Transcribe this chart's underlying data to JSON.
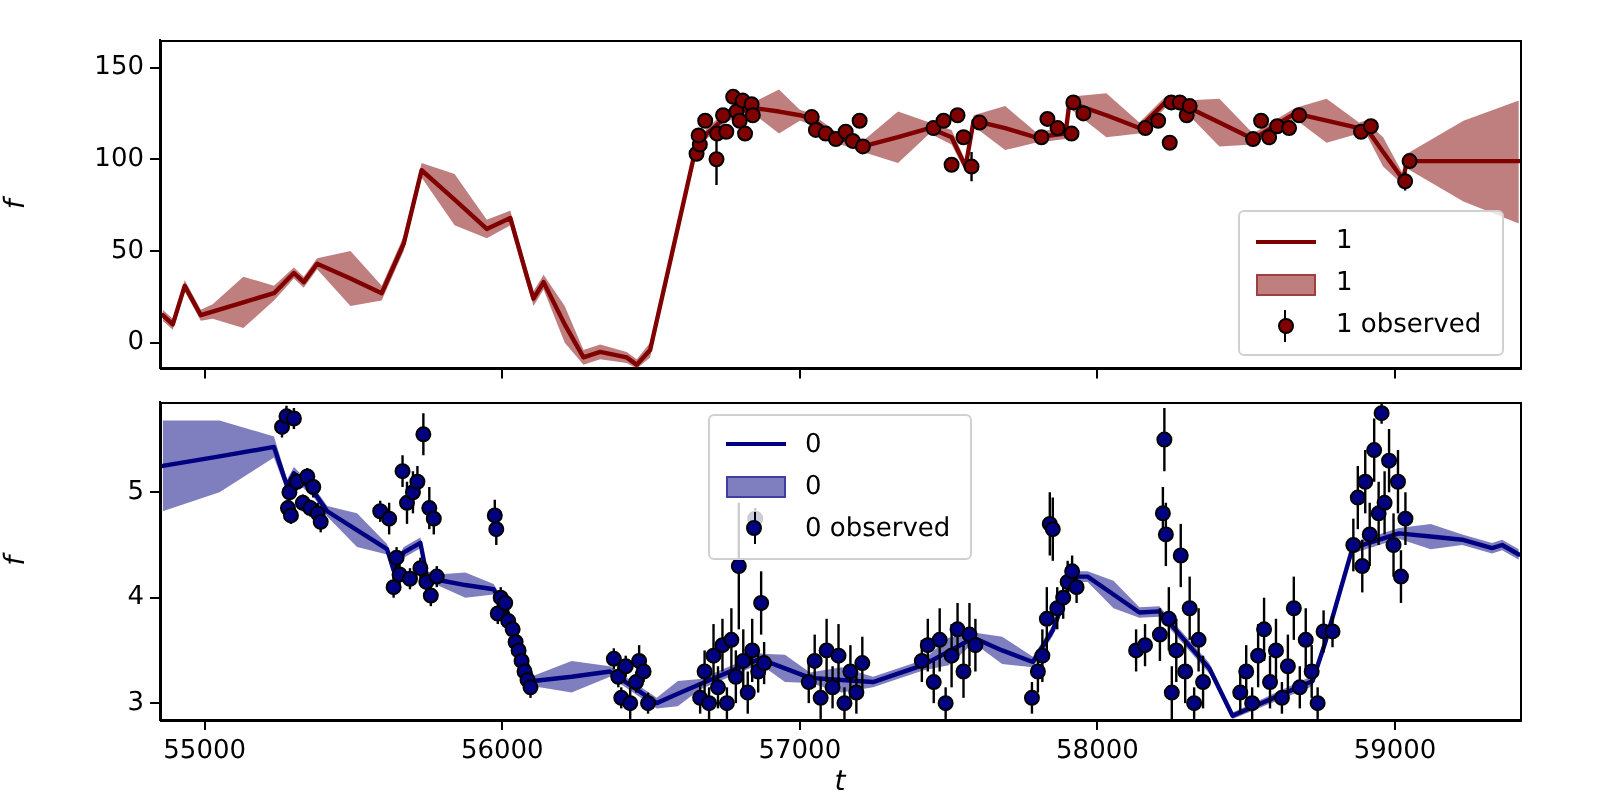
{
  "chart_data": [
    {
      "type": "line",
      "ylabel": "f",
      "xlim": [
        54850,
        59420
      ],
      "xticks": [
        55000,
        56000,
        57000,
        58000,
        59000
      ],
      "ylim": [
        -14,
        165
      ],
      "yticks": [
        0,
        50,
        100,
        150
      ],
      "tick_labels": "y",
      "legend": "bottom right",
      "series": [
        {
          "name": "1",
          "marker": "none",
          "color": "#800000",
          "x": [
            54859,
            54893,
            54933,
            54987,
            55027,
            55130,
            55233,
            55300,
            55333,
            55378,
            55490,
            55595,
            55669,
            55729,
            55840,
            55948,
            56027,
            56083,
            56105,
            56139,
            56210,
            56273,
            56329,
            56418,
            56452,
            56497,
            56642,
            56687,
            56760,
            56843,
            56930,
            57000,
            57040,
            57121,
            57212,
            57330,
            57436,
            57510,
            57557,
            57584,
            57690,
            57792,
            57893,
            57906,
            58030,
            58141,
            58228,
            58295,
            58410,
            58523,
            58664,
            58770,
            58879,
            58899,
            58960,
            59027,
            59040,
            59230,
            59416
          ],
          "values": [
            15,
            10,
            31,
            15,
            17,
            22,
            27,
            38,
            33,
            43,
            35,
            27,
            54,
            94,
            78,
            62,
            68,
            36,
            24,
            33,
            10,
            -8,
            -5,
            -8,
            -12,
            -4,
            100,
            114,
            124,
            128,
            126,
            124,
            122,
            112,
            107,
            112,
            117,
            112,
            96,
            121,
            117,
            112,
            114,
            131,
            124,
            117,
            131,
            129,
            120,
            111,
            125,
            121,
            117,
            118,
            104,
            89,
            99,
            99,
            99
          ],
          "lower": [
            12,
            7,
            28,
            12,
            13,
            8,
            23,
            35,
            30,
            40,
            20,
            23,
            50,
            90,
            64,
            57,
            64,
            32,
            20,
            29,
            0,
            -12,
            -9,
            -11,
            -14,
            -8,
            97,
            111,
            121,
            125,
            114,
            121,
            119,
            109,
            104,
            98,
            114,
            108,
            93,
            118,
            105,
            109,
            111,
            128,
            112,
            114,
            128,
            126,
            107,
            108,
            122,
            109,
            114,
            115,
            96,
            86,
            95,
            77,
            65
          ],
          "upper": [
            18,
            13,
            34,
            18,
            21,
            36,
            31,
            41,
            36,
            46,
            50,
            31,
            58,
            98,
            92,
            67,
            72,
            40,
            28,
            37,
            20,
            -4,
            -1,
            -5,
            -9,
            0,
            103,
            117,
            127,
            131,
            138,
            127,
            125,
            115,
            110,
            126,
            120,
            116,
            99,
            124,
            129,
            115,
            117,
            134,
            136,
            120,
            134,
            132,
            133,
            114,
            128,
            133,
            120,
            121,
            112,
            92,
            103,
            121,
            132
          ]
        },
        {
          "type": "scatter",
          "name": "1 observed",
          "marker": "circle",
          "color": "#800000",
          "x": [
            56653,
            56664,
            56660,
            56682,
            56720,
            56722,
            56742,
            56753,
            56776,
            56787,
            56798,
            56816,
            56808,
            56838,
            56842,
            57040,
            57054,
            57087,
            57121,
            57154,
            57178,
            57201,
            57212,
            57449,
            57483,
            57510,
            57530,
            57550,
            57577,
            57604,
            57812,
            57832,
            57866,
            57913,
            57919,
            57953,
            58161,
            58204,
            58243,
            58248,
            58277,
            58300,
            58310,
            58523,
            58550,
            58577,
            58604,
            58644,
            58678,
            58886,
            58919,
            59034,
            59049
          ],
          "values": [
            103,
            108,
            113,
            121,
            100,
            114,
            124,
            115,
            134,
            126,
            121,
            114,
            132,
            130,
            124,
            123,
            116,
            114,
            111,
            115,
            110,
            121,
            107,
            117,
            121,
            97,
            124,
            112,
            96,
            120,
            112,
            122,
            117,
            114,
            131,
            125,
            117,
            121,
            109,
            131,
            131,
            124,
            129,
            111,
            121,
            112,
            118,
            117,
            124,
            115,
            118,
            88,
            99
          ],
          "errors": [
            3,
            3,
            3,
            3,
            14,
            3,
            3,
            3,
            3,
            3,
            3,
            3,
            3,
            3,
            3,
            3,
            3,
            3,
            3,
            3,
            3,
            3,
            3,
            3,
            3,
            4,
            3,
            3,
            8,
            3,
            3,
            3,
            3,
            3,
            3,
            3,
            3,
            3,
            3,
            3,
            3,
            3,
            3,
            3,
            3,
            3,
            3,
            3,
            3,
            3,
            3,
            5,
            3
          ]
        }
      ]
    },
    {
      "type": "line",
      "xlabel": "t",
      "ylabel": "f",
      "xlim": [
        54850,
        59420
      ],
      "xticks": [
        55000,
        56000,
        57000,
        58000,
        59000
      ],
      "ylim": [
        2.84,
        5.86
      ],
      "yticks": [
        3,
        4,
        5
      ],
      "legend": "top",
      "series": [
        {
          "name": "0",
          "marker": "none",
          "color": "#000080",
          "x": [
            54859,
            55050,
            55233,
            55277,
            55300,
            55367,
            55412,
            55512,
            55613,
            55635,
            55669,
            55725,
            55747,
            55781,
            55876,
            55971,
            56016,
            56105,
            56233,
            56362,
            56519,
            56590,
            56664,
            56866,
            56950,
            57034,
            57140,
            57246,
            57414,
            57500,
            57584,
            57680,
            57783,
            57850,
            57917,
            57967,
            58054,
            58141,
            58208,
            58376,
            58454,
            58723,
            58765,
            58857,
            59013,
            59120,
            59226,
            59326,
            59360,
            59416
          ],
          "values": [
            5.25,
            5.34,
            5.43,
            5.06,
            5.18,
            5.0,
            4.82,
            4.64,
            4.46,
            4.26,
            4.43,
            4.52,
            4.2,
            4.17,
            4.12,
            4.08,
            3.87,
            3.21,
            3.25,
            3.3,
            3.0,
            3.09,
            3.18,
            3.42,
            3.33,
            3.24,
            3.22,
            3.2,
            3.36,
            3.49,
            3.62,
            3.5,
            3.39,
            3.69,
            4.2,
            4.2,
            4.03,
            3.86,
            3.87,
            3.33,
            2.88,
            3.21,
            3.57,
            4.47,
            4.61,
            4.58,
            4.55,
            4.47,
            4.5,
            4.41
          ],
          "lower": [
            4.82,
            5.0,
            5.33,
            5.0,
            5.12,
            4.95,
            4.77,
            4.48,
            4.41,
            4.21,
            4.38,
            4.47,
            4.15,
            4.12,
            4.0,
            4.03,
            3.82,
            3.16,
            3.1,
            3.25,
            2.95,
            2.97,
            3.13,
            3.37,
            3.2,
            3.19,
            3.1,
            3.15,
            3.31,
            3.36,
            3.57,
            3.37,
            3.34,
            3.64,
            4.15,
            4.15,
            3.9,
            3.81,
            3.82,
            3.28,
            2.85,
            3.16,
            3.52,
            4.42,
            4.56,
            4.46,
            4.5,
            4.42,
            4.45,
            4.36
          ],
          "upper": [
            5.68,
            5.68,
            5.53,
            5.12,
            5.24,
            5.05,
            4.87,
            4.8,
            4.51,
            4.31,
            4.48,
            4.57,
            4.25,
            4.22,
            4.24,
            4.13,
            3.92,
            3.26,
            3.4,
            3.35,
            3.05,
            3.21,
            3.23,
            3.47,
            3.46,
            3.29,
            3.34,
            3.25,
            3.41,
            3.62,
            3.67,
            3.63,
            3.44,
            3.74,
            4.25,
            4.25,
            4.16,
            3.91,
            3.92,
            3.38,
            2.91,
            3.26,
            3.62,
            4.52,
            4.66,
            4.7,
            4.6,
            4.52,
            4.55,
            4.46
          ]
        },
        {
          "type": "scatter",
          "name": "0 observed",
          "marker": "circle",
          "color": "#000080",
          "x": [
            55260,
            55275,
            55280,
            55285,
            55290,
            55300,
            55310,
            55330,
            55345,
            55355,
            55365,
            55380,
            55390,
            55590,
            55620,
            55635,
            55645,
            55655,
            55665,
            55680,
            55690,
            55700,
            55715,
            55725,
            55735,
            55745,
            55755,
            55760,
            55770,
            55780,
            55975,
            55980,
            55985,
            55995,
            56010,
            56020,
            56035,
            56045,
            56055,
            56065,
            56075,
            56085,
            56095,
            56375,
            56390,
            56400,
            56415,
            56430,
            56450,
            56460,
            56475,
            56490,
            56665,
            56680,
            56695,
            56710,
            56725,
            56740,
            56755,
            56770,
            56785,
            56795,
            56810,
            56825,
            56840,
            56850,
            56860,
            56870,
            56880,
            57030,
            57050,
            57070,
            57090,
            57110,
            57130,
            57150,
            57170,
            57190,
            57210,
            57410,
            57430,
            57450,
            57470,
            57490,
            57510,
            57530,
            57550,
            57570,
            57590,
            57780,
            57800,
            57815,
            57830,
            57840,
            57850,
            57865,
            57885,
            57900,
            57915,
            57930,
            58130,
            58160,
            58210,
            58220,
            58225,
            58230,
            58240,
            58250,
            58265,
            58280,
            58295,
            58310,
            58325,
            58340,
            58355,
            58480,
            58500,
            58520,
            58540,
            58560,
            58580,
            58600,
            58620,
            58640,
            58660,
            58680,
            58700,
            58720,
            58740,
            58760,
            58790,
            58860,
            58875,
            58890,
            58900,
            58915,
            58930,
            58945,
            58955,
            58965,
            58980,
            58995,
            59010,
            59020,
            59035
          ],
          "values": [
            5.62,
            5.72,
            4.85,
            5.0,
            4.78,
            5.7,
            5.1,
            4.9,
            5.15,
            4.85,
            5.05,
            4.8,
            4.72,
            4.82,
            4.75,
            4.1,
            4.38,
            4.22,
            5.2,
            4.9,
            4.18,
            5.0,
            5.1,
            4.28,
            5.55,
            4.15,
            4.85,
            4.02,
            4.75,
            4.2,
            4.78,
            4.65,
            3.85,
            4.0,
            3.95,
            3.78,
            3.7,
            3.58,
            3.5,
            3.4,
            3.3,
            3.22,
            3.15,
            3.42,
            3.25,
            3.05,
            3.35,
            3.0,
            3.2,
            3.4,
            3.3,
            3.0,
            3.05,
            3.3,
            3.0,
            3.45,
            3.15,
            3.55,
            3.0,
            3.6,
            3.25,
            4.3,
            3.4,
            3.1,
            3.5,
            4.75,
            3.3,
            3.95,
            3.38,
            3.2,
            3.4,
            3.05,
            3.5,
            3.15,
            3.45,
            3.0,
            3.3,
            3.1,
            3.38,
            3.4,
            3.55,
            3.2,
            3.6,
            3.0,
            3.45,
            3.7,
            3.3,
            3.65,
            3.55,
            3.05,
            3.3,
            3.45,
            3.8,
            4.7,
            4.65,
            3.9,
            4.0,
            4.15,
            4.25,
            4.1,
            3.5,
            3.55,
            3.65,
            4.8,
            5.5,
            4.6,
            3.8,
            3.1,
            3.5,
            4.4,
            3.3,
            3.9,
            3.0,
            3.6,
            3.2,
            3.1,
            3.3,
            3.0,
            3.45,
            3.7,
            3.2,
            3.5,
            3.05,
            3.35,
            3.9,
            3.15,
            3.6,
            3.3,
            3.0,
            3.68,
            3.68,
            4.5,
            4.95,
            4.3,
            5.1,
            4.6,
            5.4,
            4.8,
            5.75,
            4.9,
            5.3,
            4.5,
            5.1,
            4.2,
            4.75
          ],
          "errors": [
            0.1,
            0.1,
            0.08,
            0.08,
            0.08,
            0.1,
            0.08,
            0.08,
            0.08,
            0.08,
            0.1,
            0.1,
            0.1,
            0.1,
            0.15,
            0.1,
            0.1,
            0.1,
            0.15,
            0.2,
            0.1,
            0.2,
            0.15,
            0.1,
            0.2,
            0.1,
            0.2,
            0.1,
            0.15,
            0.1,
            0.15,
            0.15,
            0.1,
            0.1,
            0.1,
            0.1,
            0.1,
            0.1,
            0.1,
            0.1,
            0.1,
            0.1,
            0.1,
            0.1,
            0.1,
            0.1,
            0.1,
            0.15,
            0.1,
            0.15,
            0.1,
            0.1,
            0.15,
            0.2,
            0.15,
            0.3,
            0.2,
            0.25,
            0.15,
            0.3,
            0.25,
            0.6,
            0.3,
            0.2,
            0.3,
            0.1,
            0.2,
            0.3,
            0.2,
            0.2,
            0.25,
            0.2,
            0.3,
            0.2,
            0.3,
            0.15,
            0.25,
            0.2,
            0.25,
            0.2,
            0.25,
            0.2,
            0.3,
            0.15,
            0.3,
            0.25,
            0.25,
            0.3,
            0.25,
            0.15,
            0.2,
            0.25,
            0.3,
            0.3,
            0.3,
            0.2,
            0.2,
            0.2,
            0.15,
            0.15,
            0.2,
            0.2,
            0.25,
            0.25,
            0.3,
            0.3,
            0.3,
            0.25,
            0.3,
            0.3,
            0.3,
            0.3,
            0.15,
            0.3,
            0.25,
            0.2,
            0.25,
            0.15,
            0.3,
            0.3,
            0.25,
            0.3,
            0.15,
            0.3,
            0.3,
            0.2,
            0.3,
            0.25,
            0.15,
            0.2,
            0.15,
            0.25,
            0.3,
            0.25,
            0.3,
            0.3,
            0.3,
            0.3,
            0.1,
            0.3,
            0.3,
            0.3,
            0.3,
            0.25,
            0.25
          ]
        }
      ]
    }
  ]
}
